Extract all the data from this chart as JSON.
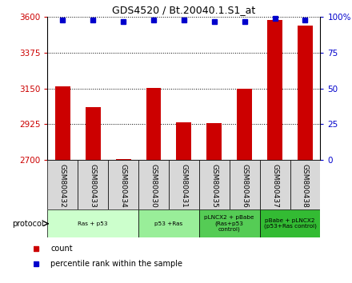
{
  "title": "GDS4520 / Bt.20040.1.S1_at",
  "samples": [
    "GSM800432",
    "GSM800433",
    "GSM800434",
    "GSM800430",
    "GSM800431",
    "GSM800435",
    "GSM800436",
    "GSM800437",
    "GSM800438"
  ],
  "counts": [
    3165,
    3030,
    2705,
    3155,
    2935,
    2930,
    3148,
    3580,
    3545
  ],
  "percentile_ranks": [
    98,
    98,
    97,
    98,
    98,
    97,
    97,
    99,
    98
  ],
  "ylim_left": [
    2700,
    3600
  ],
  "ylim_right": [
    0,
    100
  ],
  "yticks_left": [
    2700,
    2925,
    3150,
    3375,
    3600
  ],
  "yticks_right": [
    0,
    25,
    50,
    75,
    100
  ],
  "bar_color": "#cc0000",
  "dot_color": "#0000cc",
  "protocol_groups": [
    {
      "label": "Ras + p53",
      "start": 0,
      "end": 3,
      "color": "#ccffcc"
    },
    {
      "label": "p53 +Ras",
      "start": 3,
      "end": 5,
      "color": "#99ee99"
    },
    {
      "label": "pLNCX2 + pBabe\n(Ras+p53\ncontrol)",
      "start": 5,
      "end": 7,
      "color": "#55cc55"
    },
    {
      "label": "pBabe + pLNCX2\n(p53+Ras control)",
      "start": 7,
      "end": 9,
      "color": "#33bb33"
    }
  ],
  "bar_width": 0.5,
  "bg_color": "#ffffff",
  "tick_color_left": "#cc0000",
  "tick_color_right": "#0000cc",
  "sample_box_color": "#d8d8d8",
  "legend_items": [
    {
      "label": "count",
      "color": "#cc0000"
    },
    {
      "label": "percentile rank within the sample",
      "color": "#0000cc"
    }
  ]
}
